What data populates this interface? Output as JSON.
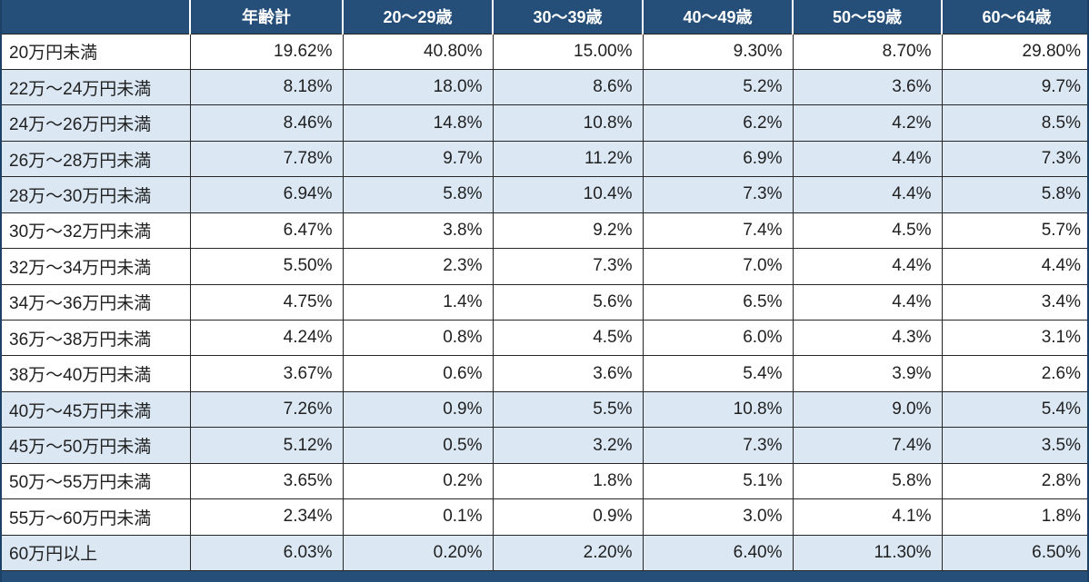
{
  "chart_data": {
    "type": "table",
    "title": "",
    "columns": [
      "",
      "年齢計",
      "20～29歳",
      "30～39歳",
      "40～49歳",
      "50～59歳",
      "60～64歳"
    ],
    "rows": [
      {
        "label": "20万円未満",
        "values": [
          "19.62%",
          "40.80%",
          "15.00%",
          "9.30%",
          "8.70%",
          "29.80%"
        ],
        "shaded": false
      },
      {
        "label": "22万～24万円未満",
        "values": [
          "8.18%",
          "18.0%",
          "8.6%",
          "5.2%",
          "3.6%",
          "9.7%"
        ],
        "shaded": true
      },
      {
        "label": "24万～26万円未満",
        "values": [
          "8.46%",
          "14.8%",
          "10.8%",
          "6.2%",
          "4.2%",
          "8.5%"
        ],
        "shaded": true
      },
      {
        "label": "26万～28万円未満",
        "values": [
          "7.78%",
          "9.7%",
          "11.2%",
          "6.9%",
          "4.4%",
          "7.3%"
        ],
        "shaded": true
      },
      {
        "label": "28万～30万円未満",
        "values": [
          "6.94%",
          "5.8%",
          "10.4%",
          "7.3%",
          "4.4%",
          "5.8%"
        ],
        "shaded": true
      },
      {
        "label": "30万～32万円未満",
        "values": [
          "6.47%",
          "3.8%",
          "9.2%",
          "7.4%",
          "4.5%",
          "5.7%"
        ],
        "shaded": false
      },
      {
        "label": "32万～34万円未満",
        "values": [
          "5.50%",
          "2.3%",
          "7.3%",
          "7.0%",
          "4.4%",
          "4.4%"
        ],
        "shaded": false
      },
      {
        "label": "34万～36万円未満",
        "values": [
          "4.75%",
          "1.4%",
          "5.6%",
          "6.5%",
          "4.4%",
          "3.4%"
        ],
        "shaded": false
      },
      {
        "label": "36万～38万円未満",
        "values": [
          "4.24%",
          "0.8%",
          "4.5%",
          "6.0%",
          "4.3%",
          "3.1%"
        ],
        "shaded": false
      },
      {
        "label": "38万～40万円未満",
        "values": [
          "3.67%",
          "0.6%",
          "3.6%",
          "5.4%",
          "3.9%",
          "2.6%"
        ],
        "shaded": false
      },
      {
        "label": "40万～45万円未満",
        "values": [
          "7.26%",
          "0.9%",
          "5.5%",
          "10.8%",
          "9.0%",
          "5.4%"
        ],
        "shaded": true
      },
      {
        "label": "45万～50万円未満",
        "values": [
          "5.12%",
          "0.5%",
          "3.2%",
          "7.3%",
          "7.4%",
          "3.5%"
        ],
        "shaded": true
      },
      {
        "label": "50万～55万円未満",
        "values": [
          "3.65%",
          "0.2%",
          "1.8%",
          "5.1%",
          "5.8%",
          "2.8%"
        ],
        "shaded": false
      },
      {
        "label": "55万～60万円未満",
        "values": [
          "2.34%",
          "0.1%",
          "0.9%",
          "3.0%",
          "4.1%",
          "1.8%"
        ],
        "shaded": false
      },
      {
        "label": "60万円以上",
        "values": [
          "6.03%",
          "0.20%",
          "2.20%",
          "6.40%",
          "11.30%",
          "6.50%"
        ],
        "shaded": true
      }
    ],
    "layout": {
      "legend": "none",
      "grid": "on",
      "value_alignment": "right",
      "row_label_alignment": "left"
    }
  },
  "colors": {
    "header_background": "#254f78",
    "header_text": "#ffffff",
    "shaded_row_background": "#dbe8f4",
    "plain_row_background": "#ffffff",
    "grid_line": "#262626",
    "header_separator": "#ffffff",
    "outer_border": "#1d4166",
    "bottom_bar": "#254f78",
    "body_text": "#1f1f1f"
  }
}
